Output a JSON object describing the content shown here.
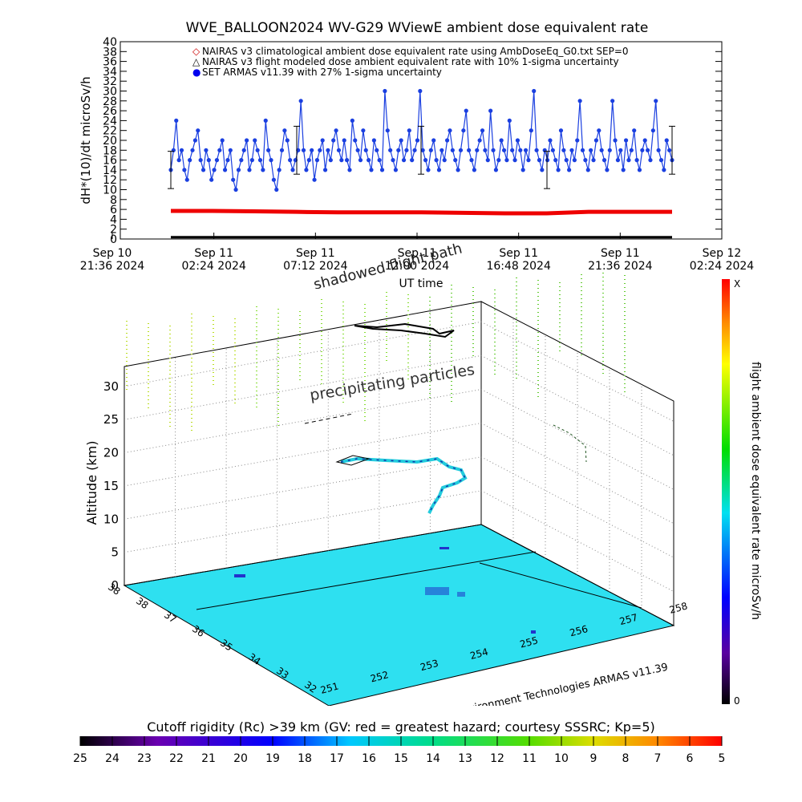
{
  "chart_data": [
    {
      "type": "scatter",
      "title": "WVE_BALLOON2024 WV-G29 WViewE ambient dose equivalent rate",
      "xlabel": "UT time",
      "ylabel": "dH*(10)/dt microSv/h",
      "ylim": [
        0,
        40
      ],
      "yticks": [
        "0",
        "2",
        "4",
        "6",
        "8",
        "10",
        "12",
        "14",
        "16",
        "18",
        "20",
        "22",
        "24",
        "26",
        "28",
        "30",
        "32",
        "34",
        "36",
        "38",
        "40"
      ],
      "xticks": [
        {
          "line1": "Sep 10",
          "line2": "21:36 2024"
        },
        {
          "line1": "Sep 11",
          "line2": "02:24 2024"
        },
        {
          "line1": "Sep 11",
          "line2": "07:12 2024"
        },
        {
          "line1": "Sep 11",
          "line2": "12:00 2024"
        },
        {
          "line1": "Sep 11",
          "line2": "16:48 2024"
        },
        {
          "line1": "Sep 11",
          "line2": "21:36 2024"
        },
        {
          "line1": "Sep 12",
          "line2": "02:24 2024"
        }
      ],
      "legend": [
        {
          "symbol": "◇",
          "label": "NAIRAS v3 climatological ambient dose equivalent rate using AmbDoseEq_G0.txt SEP=0",
          "color": "#cc0000"
        },
        {
          "symbol": "△",
          "label": "NAIRAS v3 flight modeled dose ambient equivalent rate with 10% 1-sigma uncertainty",
          "color": "#000000"
        },
        {
          "symbol": "●",
          "label": "SET ARMAS v11.39 with 27% 1-sigma uncertainty",
          "color": "#0000ee"
        }
      ],
      "series": [
        {
          "name": "SET ARMAS v11.39 with 27% 1-sigma uncertainty",
          "color": "#1a3fe0",
          "values": [
            14,
            18,
            24,
            16,
            18,
            14,
            12,
            16,
            18,
            20,
            22,
            16,
            14,
            18,
            16,
            12,
            14,
            16,
            18,
            20,
            14,
            16,
            18,
            12,
            10,
            14,
            16,
            18,
            20,
            14,
            16,
            20,
            18,
            16,
            14,
            24,
            18,
            16,
            12,
            10,
            14,
            18,
            22,
            20,
            16,
            14,
            16,
            18,
            28,
            18,
            14,
            16,
            18,
            12,
            16,
            18,
            20,
            14,
            18,
            16,
            20,
            22,
            18,
            16,
            20,
            16,
            14,
            24,
            20,
            18,
            16,
            22,
            18,
            16,
            14,
            20,
            18,
            16,
            14,
            30,
            22,
            18,
            16,
            14,
            18,
            20,
            16,
            18,
            22,
            16,
            18,
            20,
            30,
            18,
            16,
            14,
            18,
            20,
            16,
            14,
            18,
            16,
            20,
            22,
            18,
            16,
            14,
            18,
            22,
            26,
            18,
            16,
            14,
            18,
            20,
            22,
            18,
            16,
            26,
            18,
            14,
            16,
            20,
            18,
            16,
            24,
            18,
            16,
            20,
            18,
            14,
            18,
            16,
            22,
            30,
            18,
            16,
            14,
            18,
            16,
            20,
            18,
            16,
            14,
            22,
            18,
            16,
            14,
            18,
            16,
            20,
            28,
            18,
            16,
            14,
            18,
            16,
            20,
            22,
            18,
            16,
            14,
            18,
            28,
            20,
            16,
            18,
            14,
            20,
            16,
            18,
            22,
            16,
            14,
            18,
            20,
            18,
            16,
            22,
            28,
            18,
            16,
            14,
            20,
            18,
            16
          ]
        },
        {
          "name": "NAIRAS v3 flight modeled dose ambient equivalent rate with 10% 1-sigma uncertainty",
          "color": "#ee0000",
          "values": [
            5.7,
            5.7,
            5.6,
            5.5,
            5.4,
            5.4,
            5.4,
            5.3,
            5.2,
            5.2,
            5.5,
            5.5,
            5.5
          ]
        },
        {
          "name": "NAIRAS v3 climatological ambient dose equivalent rate using AmbDoseEq_G0.txt SEP=0",
          "color": "#cc0000",
          "values": [
            0.2,
            0.2,
            0.2,
            0.2,
            0.2,
            0.2,
            0.2,
            0.2,
            0.2,
            0.2,
            0.2,
            0.2,
            0.2
          ]
        }
      ],
      "annotations": [
        "shadowed flight path"
      ]
    },
    {
      "type": "scatter",
      "ylabel": "Altitude (km)",
      "zticks": [
        "0",
        "5",
        "10",
        "15",
        "20",
        "25",
        "30"
      ],
      "lat_ticks": [
        "38",
        "38",
        "37",
        "36",
        "35",
        "34",
        "33",
        "32"
      ],
      "lon_ticks": [
        "251",
        "252",
        "253",
        "254",
        "255",
        "256",
        "257",
        "258"
      ],
      "annotations": [
        "precipitating particles",
        "Space Environment Technologies ARMAS v11.39"
      ],
      "flight_path_km": [
        18,
        19,
        19,
        19,
        18,
        19,
        19,
        19,
        18,
        19,
        18,
        17,
        16,
        15
      ],
      "colorbar_right": {
        "label": "flight ambient dose equivalent rate microSv/h",
        "max": "X",
        "min": "0"
      }
    }
  ],
  "bottom_colorbar": {
    "title": "Cutoff rigidity (Rc) >39 km (GV: red = greatest hazard; courtesy SSSRC; Kp=5)",
    "ticks": [
      "25",
      "24",
      "23",
      "22",
      "21",
      "20",
      "19",
      "18",
      "17",
      "16",
      "15",
      "14",
      "13",
      "12",
      "11",
      "10",
      "9",
      "8",
      "7",
      "6",
      "5"
    ]
  }
}
